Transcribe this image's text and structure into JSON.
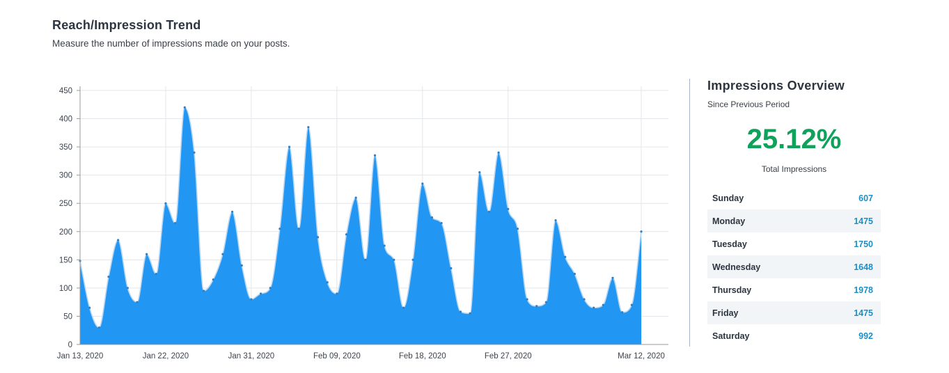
{
  "header": {
    "title": "Reach/Impression Trend",
    "subtitle": "Measure the number of impressions made on your posts."
  },
  "overview": {
    "title": "Impressions Overview",
    "subtitle": "Since Previous Period",
    "percent": "25.12%",
    "label": "Total Impressions",
    "days": [
      {
        "name": "Sunday",
        "value": "607"
      },
      {
        "name": "Monday",
        "value": "1475"
      },
      {
        "name": "Tuesday",
        "value": "1750"
      },
      {
        "name": "Wednesday",
        "value": "1648"
      },
      {
        "name": "Thursday",
        "value": "1978"
      },
      {
        "name": "Friday",
        "value": "1475"
      },
      {
        "name": "Saturday",
        "value": "992"
      }
    ]
  },
  "colors": {
    "area_fill": "#2196f3",
    "line": "#b8d6f2",
    "percent": "#0ea25a",
    "day_value": "#1c8fc7"
  },
  "chart_data": {
    "type": "area",
    "title": "",
    "xlabel": "",
    "ylabel": "",
    "ylim": [
      0,
      450
    ],
    "yticks": [
      "450",
      "400",
      "350",
      "300",
      "250",
      "200",
      "150",
      "100",
      "50",
      "0"
    ],
    "xticks": [
      "Jan 13, 2020",
      "Jan 22, 2020",
      "Jan 31, 2020",
      "Feb 09, 2020",
      "Feb 18, 2020",
      "Feb 27, 2020",
      "Mar 12, 2020"
    ],
    "grid": true,
    "series": [
      {
        "x": [
          "2020-01-13",
          "2020-01-14",
          "2020-01-15",
          "2020-01-16",
          "2020-01-17",
          "2020-01-18",
          "2020-01-19",
          "2020-01-20",
          "2020-01-21",
          "2020-01-22",
          "2020-01-23",
          "2020-01-24",
          "2020-01-25",
          "2020-01-26",
          "2020-01-27",
          "2020-01-28",
          "2020-01-29",
          "2020-01-30",
          "2020-01-31",
          "2020-02-01",
          "2020-02-02",
          "2020-02-03",
          "2020-02-04",
          "2020-02-05",
          "2020-02-06",
          "2020-02-07",
          "2020-02-08",
          "2020-02-09",
          "2020-02-10",
          "2020-02-11",
          "2020-02-12",
          "2020-02-13",
          "2020-02-14",
          "2020-02-15",
          "2020-02-16",
          "2020-02-17",
          "2020-02-18",
          "2020-02-19",
          "2020-02-20",
          "2020-02-21",
          "2020-02-22",
          "2020-02-23",
          "2020-02-24",
          "2020-02-25",
          "2020-02-26",
          "2020-02-27",
          "2020-02-28",
          "2020-02-29",
          "2020-03-01",
          "2020-03-02",
          "2020-03-03",
          "2020-03-04",
          "2020-03-05",
          "2020-03-06",
          "2020-03-07",
          "2020-03-08",
          "2020-03-09",
          "2020-03-10",
          "2020-03-11",
          "2020-03-12"
        ],
        "values": [
          148,
          65,
          30,
          120,
          185,
          100,
          75,
          160,
          125,
          250,
          215,
          420,
          340,
          95,
          115,
          160,
          235,
          140,
          80,
          90,
          100,
          205,
          350,
          205,
          385,
          190,
          110,
          90,
          195,
          260,
          150,
          335,
          175,
          150,
          65,
          150,
          285,
          225,
          215,
          135,
          58,
          55,
          305,
          235,
          340,
          240,
          205,
          80,
          68,
          75,
          220,
          155,
          125,
          80,
          65,
          70,
          118,
          57,
          70,
          200
        ]
      }
    ]
  }
}
